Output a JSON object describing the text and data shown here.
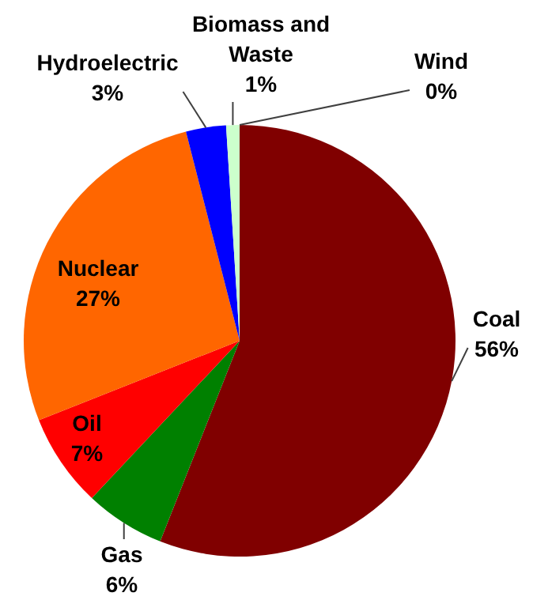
{
  "chart_data": {
    "type": "pie",
    "categories": [
      "Coal",
      "Gas",
      "Oil",
      "Nuclear",
      "Hydroelectric",
      "Biomass and Waste",
      "Wind"
    ],
    "values": [
      56,
      6,
      7,
      27,
      3,
      1,
      0
    ],
    "colors": [
      "#800000",
      "#008000",
      "#ff0000",
      "#ff6600",
      "#0000ff",
      "#ccffcc",
      "#00b0f0"
    ],
    "value_labels": [
      "56%",
      "6%",
      "7%",
      "27%",
      "3%",
      "1%",
      "0%"
    ],
    "legend": false
  }
}
